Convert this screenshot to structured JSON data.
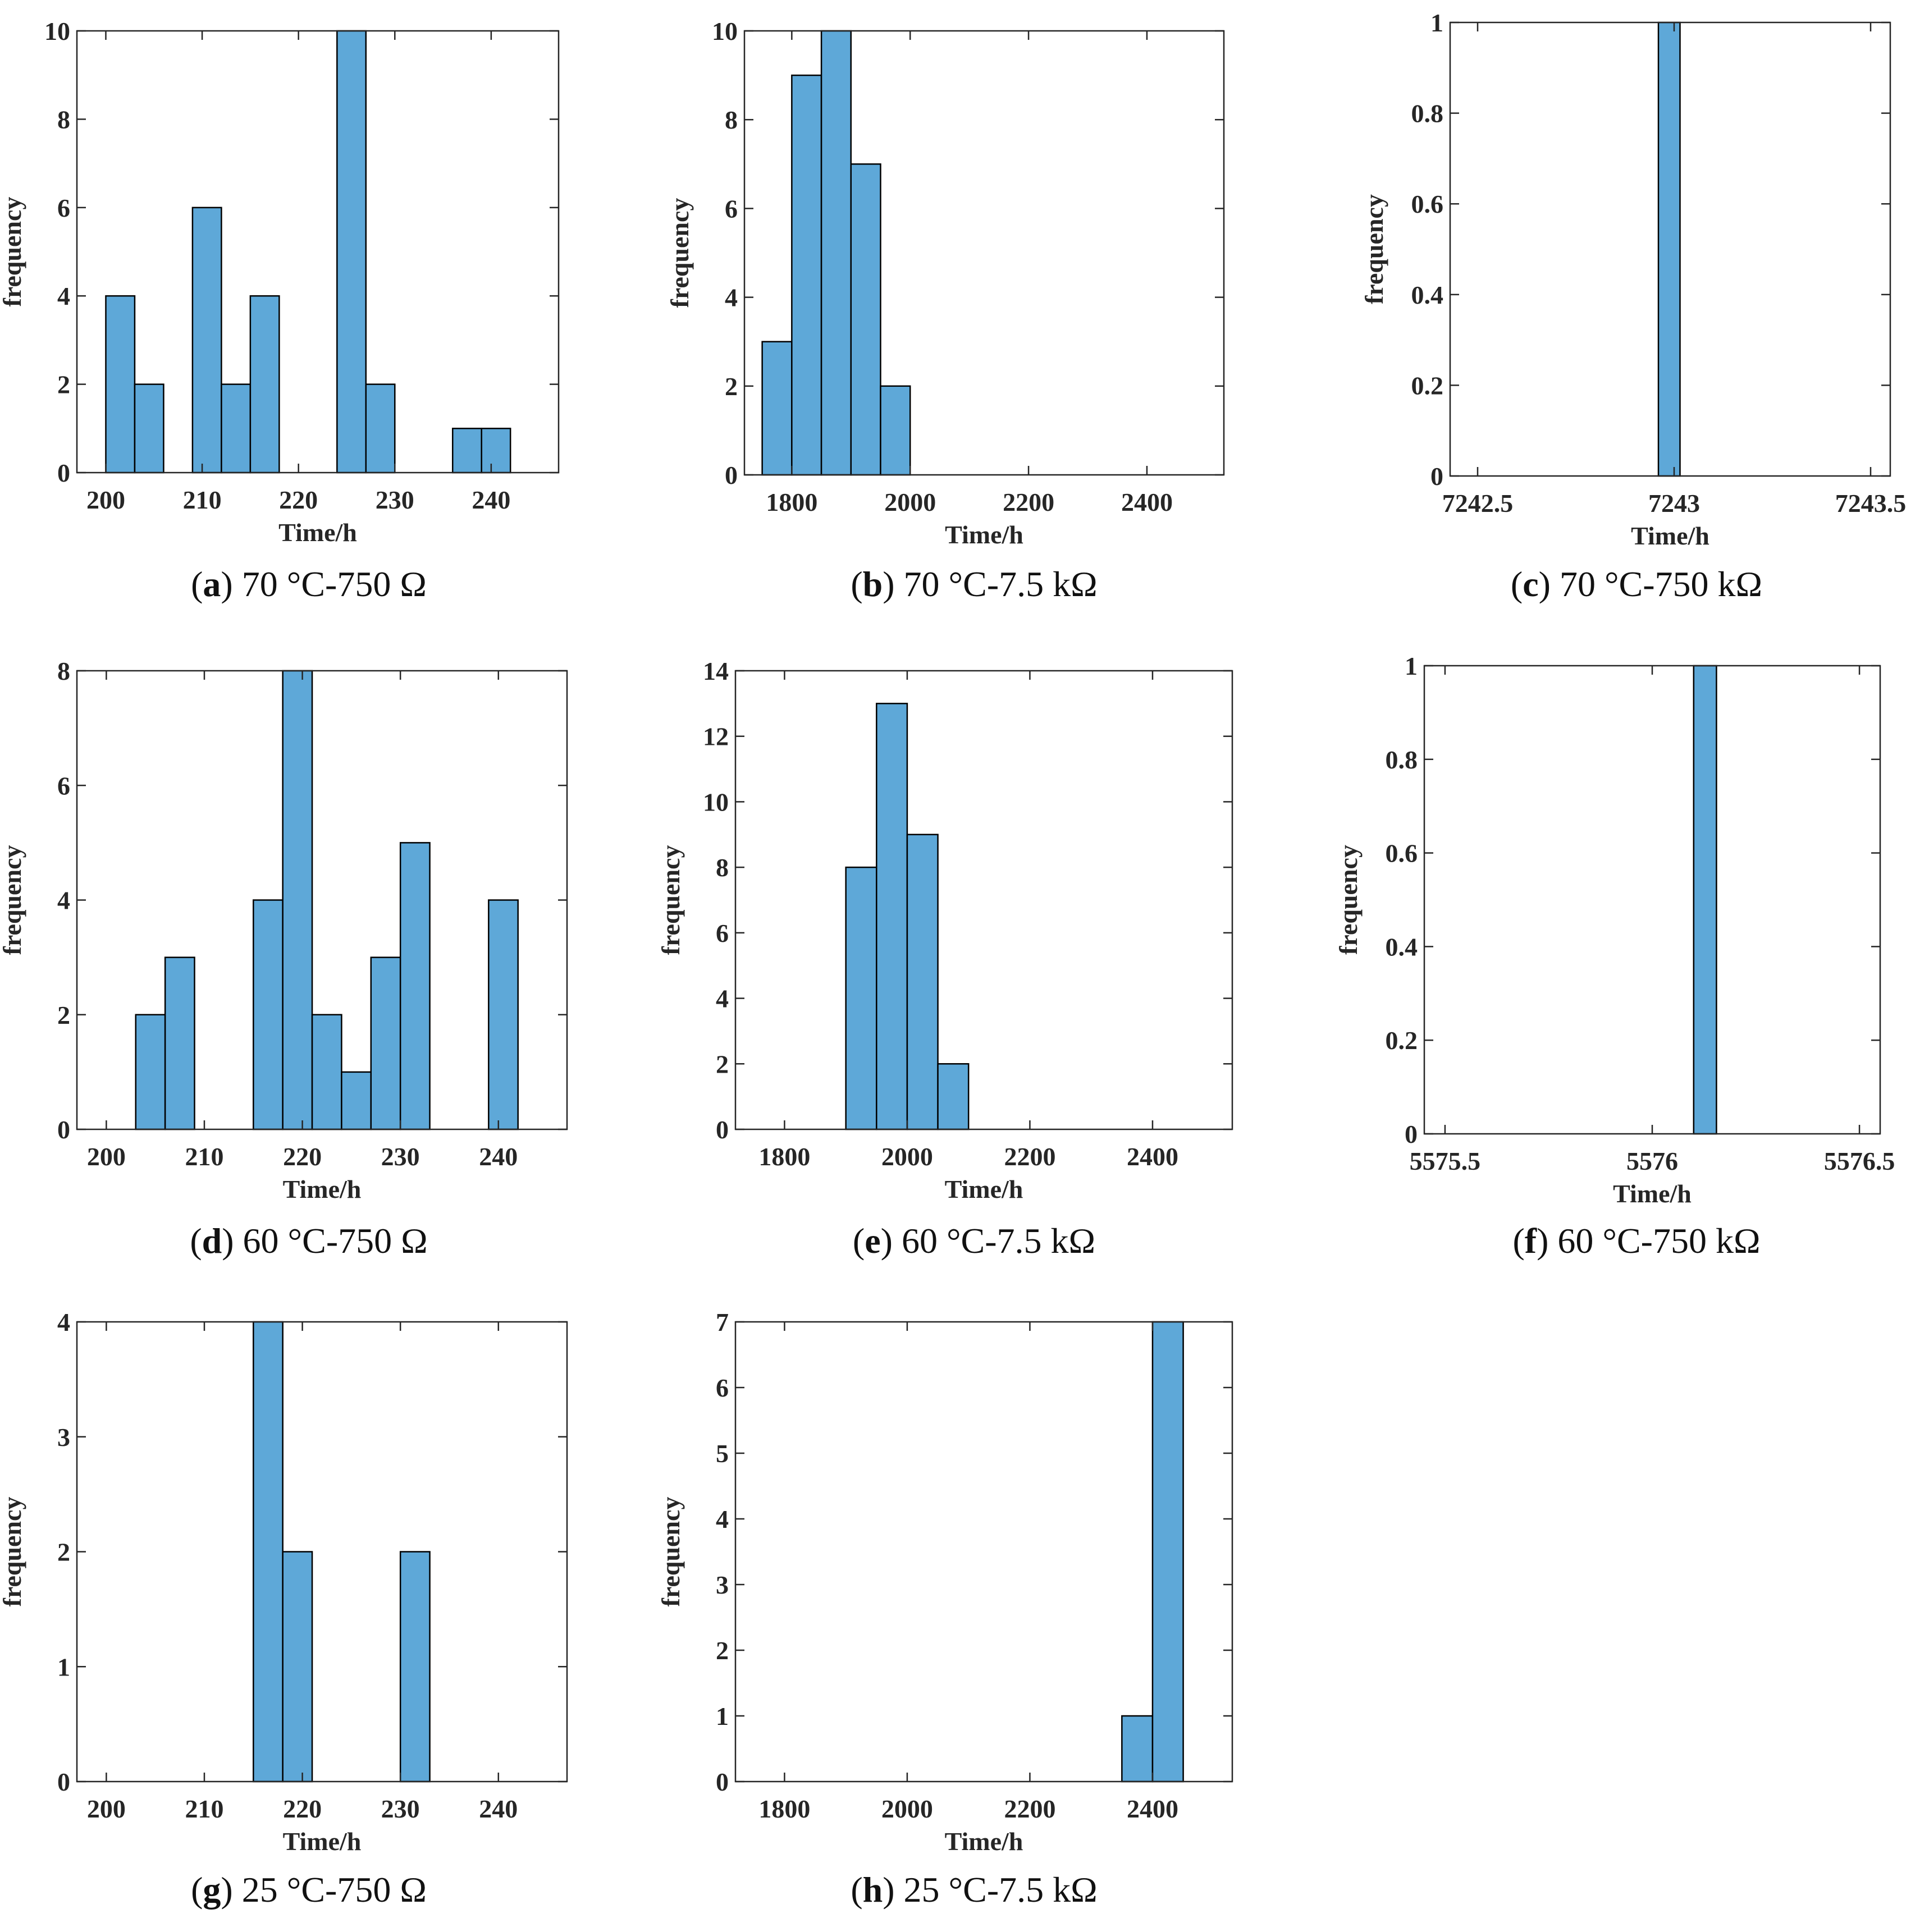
{
  "colors": {
    "bar": "#5ea8d8",
    "axis": "#262626"
  },
  "chart_data": [
    {
      "type": "bar",
      "label": "a",
      "caption": "70 °C-750 Ω",
      "xlabel": "Time/h",
      "ylabel": "frequency",
      "xlim": [
        197,
        247
      ],
      "ylim": [
        0,
        10
      ],
      "xticks": [
        "200",
        "210",
        "220",
        "230",
        "240"
      ],
      "xtick_values": [
        200,
        210,
        220,
        230,
        240
      ],
      "yticks": [
        "0",
        "2",
        "4",
        "6",
        "8",
        "10"
      ],
      "ytick_values": [
        0,
        2,
        4,
        6,
        8,
        10
      ],
      "bins": [
        {
          "start": 200,
          "end": 203,
          "count": 4
        },
        {
          "start": 203,
          "end": 206,
          "count": 2
        },
        {
          "start": 209,
          "end": 212,
          "count": 6
        },
        {
          "start": 212,
          "end": 215,
          "count": 2
        },
        {
          "start": 215,
          "end": 218,
          "count": 4
        },
        {
          "start": 224,
          "end": 227,
          "count": 10
        },
        {
          "start": 227,
          "end": 230,
          "count": 2
        },
        {
          "start": 236,
          "end": 239,
          "count": 1
        },
        {
          "start": 239,
          "end": 242,
          "count": 1
        }
      ]
    },
    {
      "type": "bar",
      "label": "b",
      "caption": "70 °C-7.5 kΩ",
      "xlabel": "Time/h",
      "ylabel": "frequency",
      "xlimits": [
        1720,
        2530
      ],
      "ylim": [
        0,
        10
      ],
      "xticks": [
        "1800",
        "2000",
        "2200",
        "2400"
      ],
      "xtick_values": [
        1800,
        2000,
        2200,
        2400
      ],
      "yticks": [
        "0",
        "2",
        "4",
        "6",
        "8",
        "10"
      ],
      "ytick_values": [
        0,
        2,
        4,
        6,
        8,
        10
      ],
      "bins": [
        {
          "start": 1750,
          "end": 1800,
          "count": 3
        },
        {
          "start": 1800,
          "end": 1850,
          "count": 9
        },
        {
          "start": 1850,
          "end": 1900,
          "count": 10
        },
        {
          "start": 1900,
          "end": 1950,
          "count": 7
        },
        {
          "start": 1950,
          "end": 2000,
          "count": 2
        }
      ]
    },
    {
      "type": "bar",
      "label": "c",
      "caption": "70 °C-750 kΩ",
      "xlabel": "Time/h",
      "ylabel": "frequency",
      "xlim": [
        7242.43,
        7243.55
      ],
      "ylim": [
        0,
        1
      ],
      "xticks": [
        "7242.5",
        "7243",
        "7243.5"
      ],
      "xtick_values": [
        7242.5,
        7243,
        7243.5
      ],
      "yticks": [
        "0",
        "0.2",
        "0.4",
        "0.6",
        "0.8",
        "1"
      ],
      "ytick_values": [
        0,
        0.2,
        0.4,
        0.6,
        0.8,
        1
      ],
      "bins": [
        {
          "start": 7242.96,
          "end": 7243.015,
          "count": 1
        }
      ]
    },
    {
      "type": "bar",
      "label": "d",
      "caption": "60 °C-750 Ω",
      "xlabel": "Time/h",
      "ylabel": "frequency",
      "xlim": [
        197,
        247
      ],
      "ylim": [
        0,
        8
      ],
      "xticks": [
        "200",
        "210",
        "220",
        "230",
        "240"
      ],
      "xtick_values": [
        200,
        210,
        220,
        230,
        240
      ],
      "yticks": [
        "0",
        "2",
        "4",
        "6",
        "8"
      ],
      "ytick_values": [
        0,
        2,
        4,
        6,
        8
      ],
      "bins": [
        {
          "start": 203,
          "end": 206,
          "count": 2
        },
        {
          "start": 206,
          "end": 209,
          "count": 3
        },
        {
          "start": 215,
          "end": 218,
          "count": 4
        },
        {
          "start": 218,
          "end": 221,
          "count": 8
        },
        {
          "start": 221,
          "end": 224,
          "count": 2
        },
        {
          "start": 224,
          "end": 227,
          "count": 1
        },
        {
          "start": 227,
          "end": 230,
          "count": 3
        },
        {
          "start": 230,
          "end": 233,
          "count": 5
        },
        {
          "start": 239,
          "end": 242,
          "count": 4
        }
      ]
    },
    {
      "type": "bar",
      "label": "e",
      "caption": "60 °C-7.5 kΩ",
      "xlabel": "Time/h",
      "ylabel": "frequency",
      "xlim": [
        1720,
        2530
      ],
      "ylim": [
        0,
        14
      ],
      "xticks": [
        "1800",
        "2000",
        "2200",
        "2400"
      ],
      "xtick_values": [
        1800,
        2000,
        2200,
        2400
      ],
      "yticks": [
        "0",
        "2",
        "4",
        "6",
        "8",
        "10",
        "12",
        "14"
      ],
      "ytick_values": [
        0,
        2,
        4,
        6,
        8,
        10,
        12,
        14
      ],
      "bins": [
        {
          "start": 1900,
          "end": 1950,
          "count": 8
        },
        {
          "start": 1950,
          "end": 2000,
          "count": 13
        },
        {
          "start": 2000,
          "end": 2050,
          "count": 9
        },
        {
          "start": 2050,
          "end": 2100,
          "count": 2
        }
      ]
    },
    {
      "type": "bar",
      "label": "f",
      "caption": "60 °C-750 kΩ",
      "xlabel": "Time/h",
      "ylabel": "frequency",
      "xlim": [
        5575.45,
        5576.55
      ],
      "ylim": [
        0,
        1
      ],
      "xticks": [
        "5575.5",
        "5576",
        "5576.5"
      ],
      "xtick_values": [
        5575.5,
        5576,
        5576.5
      ],
      "yticks": [
        "0",
        "0.2",
        "0.4",
        "0.6",
        "0.8",
        "1"
      ],
      "ytick_values": [
        0,
        0.2,
        0.4,
        0.6,
        0.8,
        1
      ],
      "bins": [
        {
          "start": 5576.1,
          "end": 5576.155,
          "count": 1
        }
      ]
    },
    {
      "type": "bar",
      "label": "g",
      "caption": "25 °C-750 Ω",
      "xlabel": "Time/h",
      "ylabel": "frequency",
      "xlim": [
        197,
        247
      ],
      "ylim": [
        0,
        4
      ],
      "xticks": [
        "200",
        "210",
        "220",
        "230",
        "240"
      ],
      "xtick_values": [
        200,
        210,
        220,
        230,
        240
      ],
      "yticks": [
        "0",
        "1",
        "2",
        "3",
        "4"
      ],
      "ytick_values": [
        0,
        1,
        2,
        3,
        4
      ],
      "bins": [
        {
          "start": 215,
          "end": 218,
          "count": 4
        },
        {
          "start": 218,
          "end": 221,
          "count": 2
        },
        {
          "start": 230,
          "end": 233,
          "count": 2
        }
      ]
    },
    {
      "type": "bar",
      "label": "h",
      "caption": "25 °C-7.5 kΩ",
      "xlabel": "Time/h",
      "ylabel": "frequency",
      "xlim": [
        1720,
        2530
      ],
      "ylim": [
        0,
        7
      ],
      "xticks": [
        "1800",
        "2000",
        "2200",
        "2400"
      ],
      "xtick_values": [
        1800,
        2000,
        2200,
        2400
      ],
      "yticks": [
        "0",
        "1",
        "2",
        "3",
        "4",
        "5",
        "6",
        "7"
      ],
      "ytick_values": [
        0,
        1,
        2,
        3,
        4,
        5,
        6,
        7
      ],
      "bins": [
        {
          "start": 2350,
          "end": 2400,
          "count": 1
        },
        {
          "start": 2400,
          "end": 2450,
          "count": 7
        }
      ]
    }
  ]
}
